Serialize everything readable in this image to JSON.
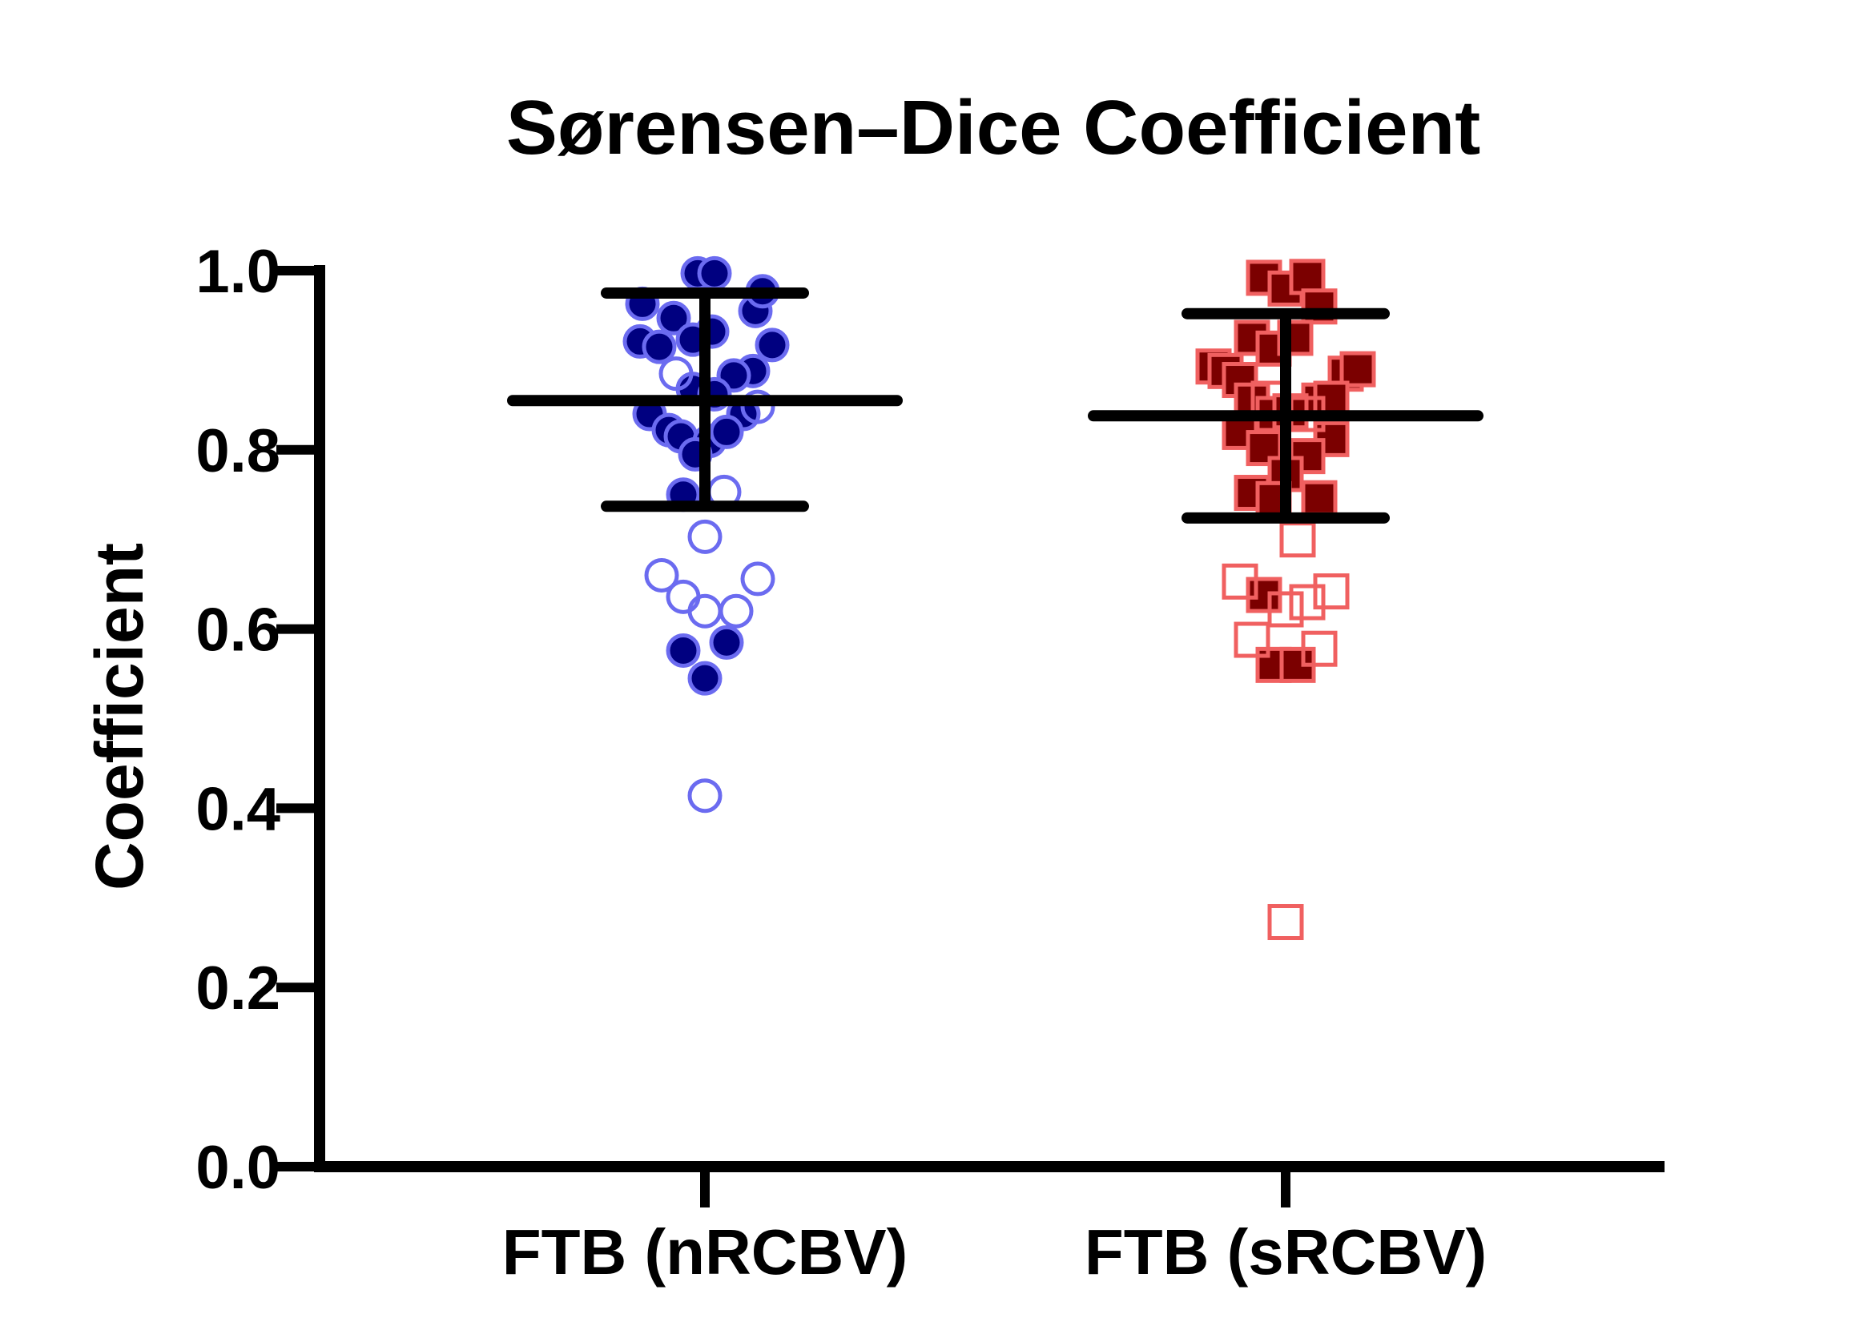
{
  "chart_data": {
    "type": "scatter",
    "title": "Sørensen–Dice Coefficient",
    "xlabel": "",
    "ylabel": "Coefficient",
    "ylim": [
      0.0,
      1.0
    ],
    "yticks": [
      "0.0",
      "0.2",
      "0.4",
      "0.6",
      "0.8",
      "1.0"
    ],
    "categories": [
      "FTB (nRCBV)",
      "FTB (sRCBV)"
    ],
    "series": [
      {
        "name": "FTB (nRCBV)",
        "marker": "circle",
        "fill_color": "#000080",
        "edge_color": "#6b6bf0",
        "mean": 0.855,
        "sd_upper": 0.975,
        "sd_lower": 0.737,
        "filled_points": [
          {
            "dx": -0.03,
            "y": 0.997
          },
          {
            "dx": 0.04,
            "y": 0.997
          },
          {
            "dx": -0.26,
            "y": 0.963
          },
          {
            "dx": 0.21,
            "y": 0.955
          },
          {
            "dx": 0.24,
            "y": 0.977
          },
          {
            "dx": -0.13,
            "y": 0.947
          },
          {
            "dx": 0.03,
            "y": 0.932
          },
          {
            "dx": -0.27,
            "y": 0.921
          },
          {
            "dx": -0.19,
            "y": 0.915
          },
          {
            "dx": -0.05,
            "y": 0.923
          },
          {
            "dx": 0.28,
            "y": 0.917
          },
          {
            "dx": 0.2,
            "y": 0.888
          },
          {
            "dx": 0.12,
            "y": 0.883
          },
          {
            "dx": -0.05,
            "y": 0.868
          },
          {
            "dx": 0.04,
            "y": 0.862
          },
          {
            "dx": -0.23,
            "y": 0.84
          },
          {
            "dx": 0.16,
            "y": 0.84
          },
          {
            "dx": -0.15,
            "y": 0.822
          },
          {
            "dx": -0.1,
            "y": 0.815
          },
          {
            "dx": 0.02,
            "y": 0.81
          },
          {
            "dx": 0.09,
            "y": 0.82
          },
          {
            "dx": -0.04,
            "y": 0.795
          },
          {
            "dx": -0.09,
            "y": 0.75
          },
          {
            "dx": 0.09,
            "y": 0.585
          },
          {
            "dx": -0.09,
            "y": 0.576
          },
          {
            "dx": 0.0,
            "y": 0.545
          }
        ],
        "open_points": [
          {
            "dx": -0.12,
            "y": 0.885
          },
          {
            "dx": 0.22,
            "y": 0.848
          },
          {
            "dx": 0.08,
            "y": 0.753
          },
          {
            "dx": 0.0,
            "y": 0.703
          },
          {
            "dx": -0.18,
            "y": 0.66
          },
          {
            "dx": 0.22,
            "y": 0.656
          },
          {
            "dx": -0.09,
            "y": 0.636
          },
          {
            "dx": 0.0,
            "y": 0.62
          },
          {
            "dx": 0.13,
            "y": 0.62
          },
          {
            "dx": 0.0,
            "y": 0.414
          }
        ]
      },
      {
        "name": "FTB (sRCBV)",
        "marker": "square",
        "fill_color": "#7b0000",
        "edge_color": "#f06060",
        "mean": 0.838,
        "sd_upper": 0.952,
        "sd_lower": 0.724,
        "filled_points": [
          {
            "dx": -0.09,
            "y": 0.992
          },
          {
            "dx": 0.0,
            "y": 0.98
          },
          {
            "dx": 0.09,
            "y": 0.993
          },
          {
            "dx": 0.14,
            "y": 0.96
          },
          {
            "dx": -0.14,
            "y": 0.925
          },
          {
            "dx": -0.05,
            "y": 0.913
          },
          {
            "dx": 0.04,
            "y": 0.925
          },
          {
            "dx": -0.3,
            "y": 0.893
          },
          {
            "dx": -0.25,
            "y": 0.888
          },
          {
            "dx": -0.19,
            "y": 0.878
          },
          {
            "dx": 0.25,
            "y": 0.885
          },
          {
            "dx": 0.3,
            "y": 0.89
          },
          {
            "dx": -0.14,
            "y": 0.855
          },
          {
            "dx": 0.14,
            "y": 0.855
          },
          {
            "dx": 0.19,
            "y": 0.857
          },
          {
            "dx": -0.05,
            "y": 0.84
          },
          {
            "dx": 0.02,
            "y": 0.843
          },
          {
            "dx": -0.19,
            "y": 0.82
          },
          {
            "dx": 0.19,
            "y": 0.812
          },
          {
            "dx": -0.09,
            "y": 0.802
          },
          {
            "dx": 0.09,
            "y": 0.793
          },
          {
            "dx": 0.0,
            "y": 0.773
          },
          {
            "dx": -0.14,
            "y": 0.752
          },
          {
            "dx": -0.05,
            "y": 0.745
          },
          {
            "dx": 0.14,
            "y": 0.746
          },
          {
            "dx": -0.09,
            "y": 0.638
          },
          {
            "dx": -0.05,
            "y": 0.56
          },
          {
            "dx": 0.05,
            "y": 0.56
          }
        ],
        "open_points": [
          {
            "dx": -0.07,
            "y": 0.857
          },
          {
            "dx": 0.09,
            "y": 0.84
          },
          {
            "dx": 0.05,
            "y": 0.7
          },
          {
            "dx": -0.19,
            "y": 0.653
          },
          {
            "dx": 0.19,
            "y": 0.642
          },
          {
            "dx": 0.09,
            "y": 0.63
          },
          {
            "dx": 0.0,
            "y": 0.622
          },
          {
            "dx": -0.14,
            "y": 0.588
          },
          {
            "dx": 0.14,
            "y": 0.578
          },
          {
            "dx": 0.0,
            "y": 0.273
          }
        ]
      }
    ]
  }
}
